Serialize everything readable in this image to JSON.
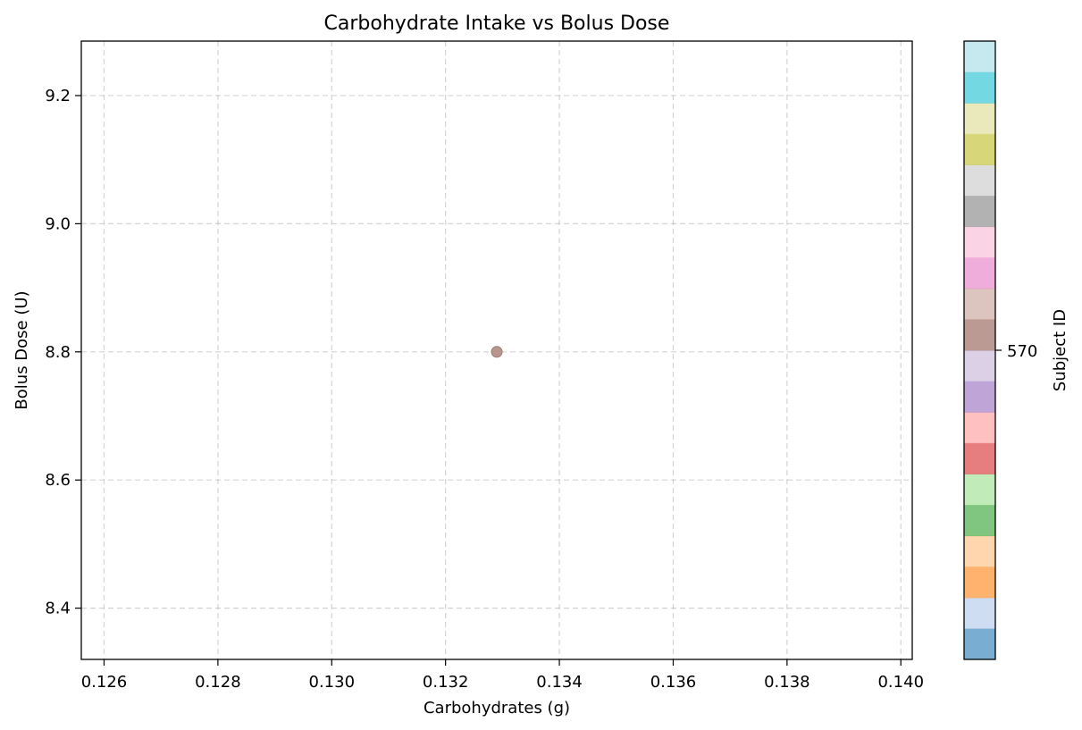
{
  "chart_data": {
    "type": "scatter",
    "title": "Carbohydrate Intake vs Bolus Dose",
    "xlabel": "Carbohydrates (g)",
    "ylabel": "Bolus Dose (U)",
    "xlim": [
      0.1256,
      0.1402
    ],
    "ylim": [
      8.32,
      9.285
    ],
    "xticks": [
      0.126,
      0.128,
      0.13,
      0.132,
      0.134,
      0.136,
      0.138,
      0.14
    ],
    "xtick_labels": [
      "0.126",
      "0.128",
      "0.130",
      "0.132",
      "0.134",
      "0.136",
      "0.138",
      "0.140"
    ],
    "yticks": [
      8.4,
      8.6,
      8.8,
      9.0,
      9.2
    ],
    "ytick_labels": [
      "8.4",
      "8.6",
      "8.8",
      "9.0",
      "9.2"
    ],
    "grid": true,
    "points": [
      {
        "x": 0.1329,
        "y": 8.8,
        "subject_id": 570,
        "color": "#b8968e"
      }
    ],
    "colorbar": {
      "label": "Subject ID",
      "tick_labels": [
        "570"
      ],
      "tick_value": 570,
      "colormap": "tab20",
      "colors": [
        "#1f77b4",
        "#aec7e8",
        "#ff7f0e",
        "#ffbb78",
        "#2ca02c",
        "#98df8a",
        "#d62728",
        "#ff9896",
        "#9467bd",
        "#c5b0d5",
        "#8c564b",
        "#c49c94",
        "#e377c2",
        "#f7b6d2",
        "#7f7f7f",
        "#c7c7c7",
        "#bcbd22",
        "#dbdb8d",
        "#17becf",
        "#9edae5"
      ],
      "alpha": 0.6
    }
  }
}
